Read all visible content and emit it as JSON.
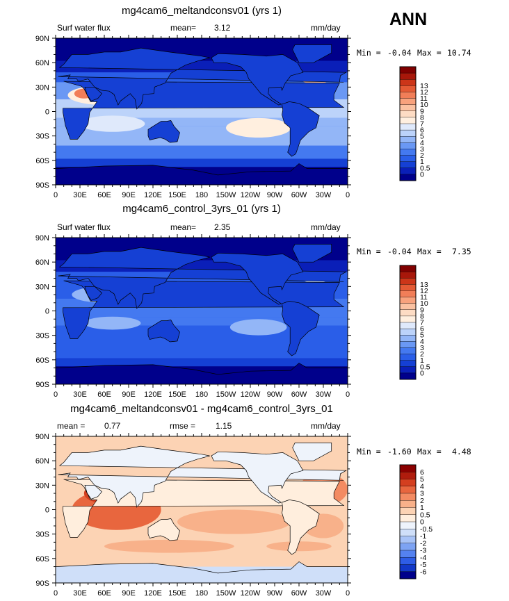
{
  "season": "ANN",
  "colors": {
    "abs": [
      "#00008b",
      "#0a1fb8",
      "#1540d4",
      "#2a5ee8",
      "#4479f0",
      "#6a98f4",
      "#93b6f7",
      "#bcd3fa",
      "#dfe9fb",
      "#ffefdf",
      "#fddcc4",
      "#fbc2a2",
      "#f8a27d",
      "#f17e58",
      "#e45a35",
      "#cc3519",
      "#a8170a",
      "#800000"
    ],
    "diff": [
      "#00008b",
      "#1238c8",
      "#2e5de6",
      "#5482f0",
      "#7da3f3",
      "#a8c3f7",
      "#cfdff9",
      "#eef3fb",
      "#ffeedd",
      "#fcd3b4",
      "#f8b18a",
      "#f38b62",
      "#e8663e",
      "#d43f1f",
      "#b01c0d",
      "#8b0000"
    ]
  },
  "panels": [
    {
      "title": "mg4cam6_meltandconsv01 (yrs 1)",
      "left_label": "Surf water flux",
      "mid_label": "mean=",
      "mid_value": "3.12",
      "units": "mm/day",
      "min_label": "Min =",
      "min_value": "-0.04",
      "max_label": "Max =",
      "max_value": "10.74",
      "colorbar_labels": [
        "13",
        "12",
        "11",
        "10",
        "9",
        "8",
        "7",
        "6",
        "5",
        "4",
        "3",
        "2",
        "1",
        "0.5",
        "0"
      ]
    },
    {
      "title": "mg4cam6_control_3yrs_01 (yrs 1)",
      "left_label": "Surf water flux",
      "mid_label": "mean=",
      "mid_value": "2.35",
      "units": "mm/day",
      "min_label": "Min =",
      "min_value": "-0.04",
      "max_label": "Max =",
      "max_value": "7.35",
      "colorbar_labels": [
        "13",
        "12",
        "11",
        "10",
        "9",
        "8",
        "7",
        "6",
        "5",
        "4",
        "3",
        "2",
        "1",
        "0.5",
        "0"
      ]
    },
    {
      "title": "mg4cam6_meltandconsv01 - mg4cam6_control_3yrs_01",
      "left_label": "mean =",
      "left_value": "0.77",
      "mid_label": "rmse =",
      "mid_value": "1.15",
      "units": "mm/day",
      "min_label": "Min =",
      "min_value": "-1.60",
      "max_label": "Max =",
      "max_value": "4.48",
      "colorbar_labels": [
        "6",
        "5",
        "4",
        "3",
        "2",
        "1",
        "0.5",
        "0",
        "-0.5",
        "-1",
        "-2",
        "-3",
        "-4",
        "-5",
        "-6"
      ]
    }
  ],
  "chart_data": [
    {
      "type": "heatmap",
      "title": "mg4cam6_meltandconsv01 (yrs 1)",
      "variable": "Surf water flux",
      "units": "mm/day",
      "mean": 3.12,
      "min": -0.04,
      "max": 10.74,
      "x_ticks": [
        "0",
        "30E",
        "60E",
        "90E",
        "120E",
        "150E",
        "180",
        "150W",
        "120W",
        "90W",
        "60W",
        "30W",
        "0"
      ],
      "y_ticks": [
        "90N",
        "60N",
        "30N",
        "0",
        "30S",
        "60S",
        "90S"
      ],
      "levels": [
        0,
        0.5,
        1,
        2,
        3,
        4,
        5,
        6,
        7,
        8,
        9,
        10,
        11,
        12,
        13
      ]
    },
    {
      "type": "heatmap",
      "title": "mg4cam6_control_3yrs_01 (yrs 1)",
      "variable": "Surf water flux",
      "units": "mm/day",
      "mean": 2.35,
      "min": -0.04,
      "max": 7.35,
      "x_ticks": [
        "0",
        "30E",
        "60E",
        "90E",
        "120E",
        "150E",
        "180",
        "150W",
        "120W",
        "90W",
        "60W",
        "30W",
        "0"
      ],
      "y_ticks": [
        "90N",
        "60N",
        "30N",
        "0",
        "30S",
        "60S",
        "90S"
      ],
      "levels": [
        0,
        0.5,
        1,
        2,
        3,
        4,
        5,
        6,
        7,
        8,
        9,
        10,
        11,
        12,
        13
      ]
    },
    {
      "type": "heatmap",
      "title": "mg4cam6_meltandconsv01 - mg4cam6_control_3yrs_01",
      "units": "mm/day",
      "mean": 0.77,
      "rmse": 1.15,
      "min": -1.6,
      "max": 4.48,
      "x_ticks": [
        "0",
        "30E",
        "60E",
        "90E",
        "120E",
        "150E",
        "180",
        "150W",
        "120W",
        "90W",
        "60W",
        "30W",
        "0"
      ],
      "y_ticks": [
        "90N",
        "60N",
        "30N",
        "0",
        "30S",
        "60S",
        "90S"
      ],
      "levels": [
        -6,
        -5,
        -4,
        -3,
        -2,
        -1,
        -0.5,
        0,
        0.5,
        1,
        2,
        3,
        4,
        5,
        6
      ]
    }
  ]
}
